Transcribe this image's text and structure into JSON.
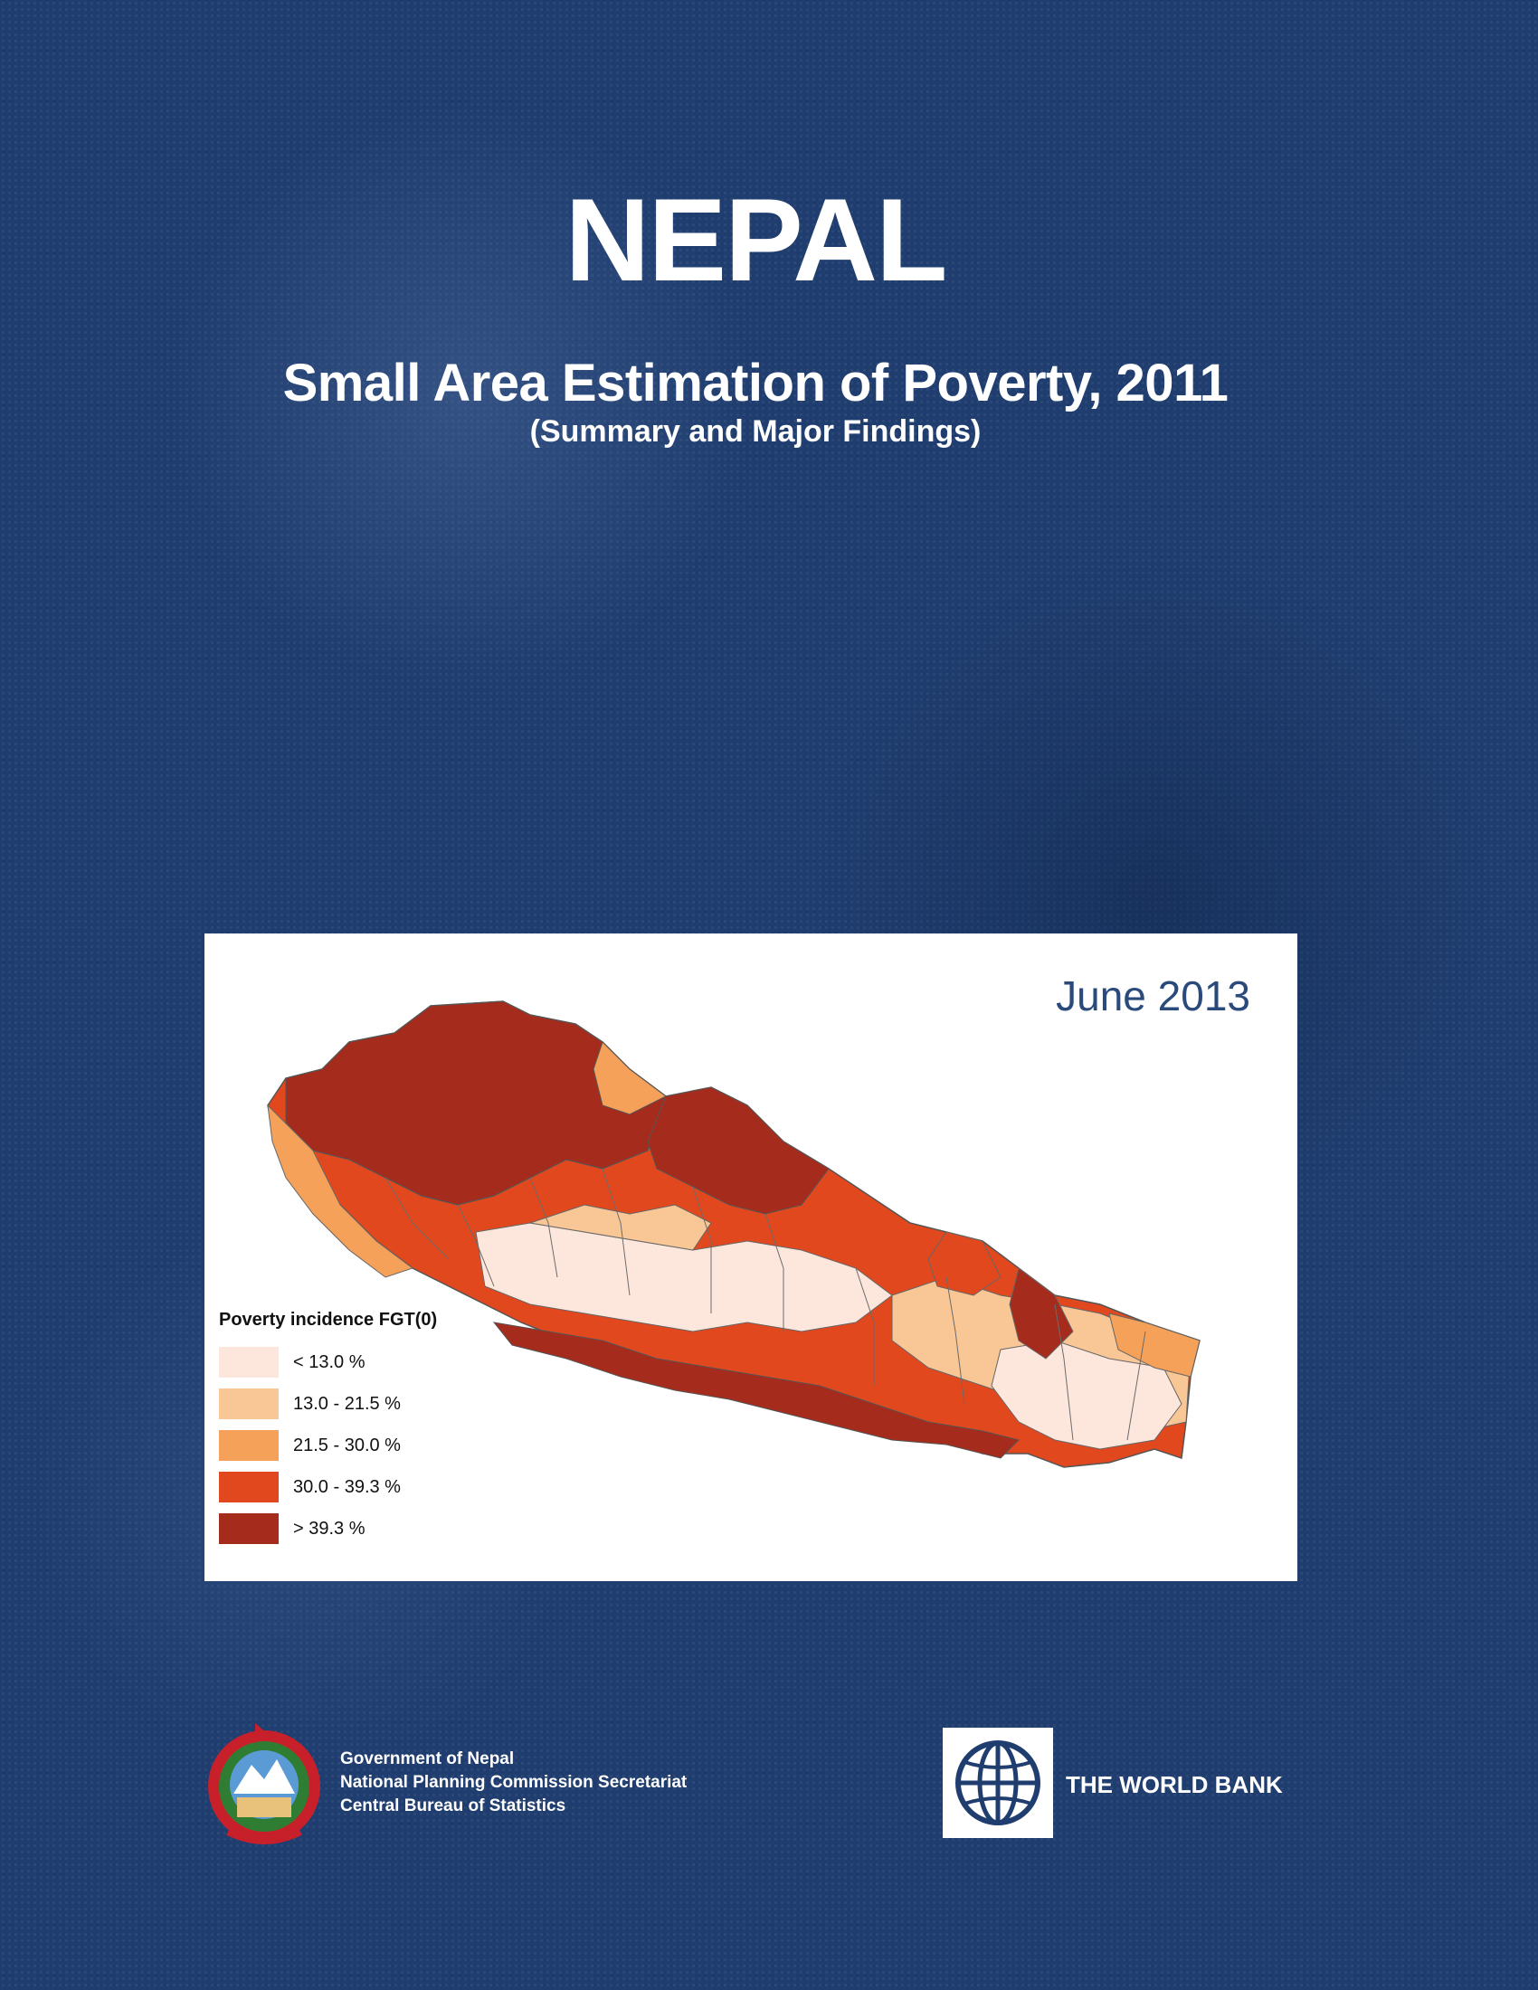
{
  "cover": {
    "title": "NEPAL",
    "subtitle": "Small Area Estimation of Poverty, 2011",
    "subtitle_note": "(Summary and Major Findings)"
  },
  "map": {
    "date": "June 2013",
    "legend_title": "Poverty incidence FGT(0)",
    "legend": [
      {
        "label": "< 13.0 %",
        "color": "#fde7dc"
      },
      {
        "label": "13.0 - 21.5 %",
        "color": "#f9c795"
      },
      {
        "label": "21.5 - 30.0 %",
        "color": "#f5a15a"
      },
      {
        "label": "30.0 - 39.3 %",
        "color": "#e2481e"
      },
      {
        "label": "> 39.3 %",
        "color": "#a52b1d"
      }
    ]
  },
  "publishers": {
    "government": {
      "line1": "Government of Nepal",
      "line2": "National Planning Commission Secretariat",
      "line3": "Central Bureau of Statistics"
    },
    "world_bank": "THE WORLD BANK"
  }
}
